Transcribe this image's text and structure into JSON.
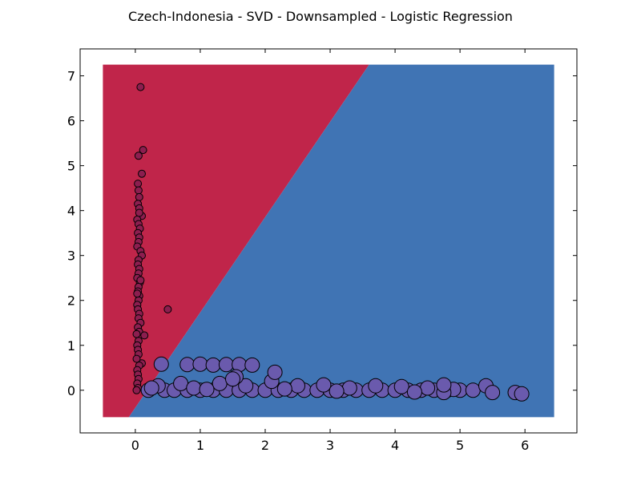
{
  "chart_data": {
    "type": "scatter",
    "title": "Czech-Indonesia - SVD - Downsampled - Logistic Regression",
    "xlabel": "",
    "ylabel": "",
    "xlim": [
      -0.85,
      6.8
    ],
    "ylim": [
      -0.95,
      7.6
    ],
    "xticks": [
      0,
      1,
      2,
      3,
      4,
      5,
      6
    ],
    "yticks": [
      0,
      1,
      2,
      3,
      4,
      5,
      6,
      7
    ],
    "grid": false,
    "legend": "none",
    "mesh_extent": {
      "x": [
        -0.5,
        6.45
      ],
      "y": [
        -0.6,
        7.25
      ]
    },
    "decision_boundary": [
      [
        -0.1,
        -0.6
      ],
      [
        3.6,
        7.25
      ]
    ],
    "colors": {
      "region_class_0": "#c0254a",
      "region_class_1": "#4074b4",
      "points_class_0": "#8c1e4f",
      "points_class_1": "#6a5aad",
      "point_edge": "#000000"
    },
    "series": [
      {
        "class": 0,
        "points": [
          [
            0.08,
            6.75
          ],
          [
            0.12,
            5.35
          ],
          [
            0.05,
            5.22
          ],
          [
            0.1,
            4.82
          ],
          [
            0.04,
            4.6
          ],
          [
            0.05,
            4.45
          ],
          [
            0.06,
            4.3
          ],
          [
            0.04,
            4.15
          ],
          [
            0.06,
            4.05
          ],
          [
            0.1,
            3.88
          ],
          [
            0.03,
            3.8
          ],
          [
            0.05,
            3.7
          ],
          [
            0.07,
            3.6
          ],
          [
            0.04,
            3.5
          ],
          [
            0.06,
            3.4
          ],
          [
            0.05,
            3.3
          ],
          [
            0.03,
            3.2
          ],
          [
            0.08,
            3.1
          ],
          [
            0.1,
            3.0
          ],
          [
            0.05,
            2.9
          ],
          [
            0.04,
            2.8
          ],
          [
            0.06,
            2.7
          ],
          [
            0.05,
            2.6
          ],
          [
            0.03,
            2.5
          ],
          [
            0.07,
            2.4
          ],
          [
            0.05,
            2.3
          ],
          [
            0.04,
            2.2
          ],
          [
            0.06,
            2.1
          ],
          [
            0.05,
            2.0
          ],
          [
            0.03,
            1.9
          ],
          [
            0.04,
            1.8
          ],
          [
            0.06,
            1.7
          ],
          [
            0.05,
            1.6
          ],
          [
            0.08,
            1.5
          ],
          [
            0.04,
            1.4
          ],
          [
            0.06,
            1.3
          ],
          [
            0.14,
            1.22
          ],
          [
            0.05,
            1.1
          ],
          [
            0.03,
            1.0
          ],
          [
            0.04,
            0.9
          ],
          [
            0.05,
            0.8
          ],
          [
            0.1,
            0.6
          ],
          [
            0.06,
            0.55
          ],
          [
            0.03,
            0.45
          ],
          [
            0.04,
            0.35
          ],
          [
            0.05,
            0.25
          ],
          [
            0.03,
            0.15
          ],
          [
            0.04,
            0.05
          ],
          [
            0.02,
            0.0
          ],
          [
            0.5,
            1.8
          ],
          [
            0.06,
            3.95
          ],
          [
            0.08,
            2.45
          ],
          [
            0.03,
            2.15
          ],
          [
            0.02,
            1.25
          ],
          [
            0.02,
            0.7
          ]
        ]
      },
      {
        "class": 1,
        "points": [
          [
            0.2,
            0.0
          ],
          [
            0.45,
            0.0
          ],
          [
            0.6,
            0.0
          ],
          [
            0.8,
            0.0
          ],
          [
            1.0,
            0.0
          ],
          [
            1.2,
            0.0
          ],
          [
            1.4,
            0.0
          ],
          [
            1.6,
            0.0
          ],
          [
            1.8,
            0.0
          ],
          [
            2.0,
            0.0
          ],
          [
            2.2,
            0.0
          ],
          [
            2.4,
            0.0
          ],
          [
            2.6,
            0.0
          ],
          [
            2.8,
            0.0
          ],
          [
            3.0,
            0.0
          ],
          [
            3.2,
            0.0
          ],
          [
            3.4,
            0.0
          ],
          [
            3.6,
            0.0
          ],
          [
            3.8,
            0.0
          ],
          [
            4.0,
            0.0
          ],
          [
            4.2,
            0.0
          ],
          [
            4.4,
            0.0
          ],
          [
            4.6,
            0.0
          ],
          [
            4.8,
            0.0
          ],
          [
            5.0,
            0.0
          ],
          [
            5.2,
            0.0
          ],
          [
            0.35,
            0.1
          ],
          [
            0.7,
            0.15
          ],
          [
            0.9,
            0.05
          ],
          [
            1.3,
            0.15
          ],
          [
            1.7,
            0.1
          ],
          [
            2.1,
            0.2
          ],
          [
            2.5,
            0.1
          ],
          [
            2.9,
            0.12
          ],
          [
            3.3,
            0.05
          ],
          [
            3.7,
            0.1
          ],
          [
            4.1,
            0.08
          ],
          [
            4.5,
            0.05
          ],
          [
            4.9,
            0.02
          ],
          [
            0.4,
            0.58
          ],
          [
            0.8,
            0.57
          ],
          [
            1.0,
            0.58
          ],
          [
            1.2,
            0.56
          ],
          [
            1.4,
            0.57
          ],
          [
            1.6,
            0.57
          ],
          [
            1.8,
            0.56
          ],
          [
            2.15,
            0.4
          ],
          [
            1.55,
            0.3
          ],
          [
            0.25,
            0.05
          ],
          [
            5.4,
            0.1
          ],
          [
            5.5,
            -0.05
          ],
          [
            5.85,
            -0.05
          ],
          [
            5.95,
            -0.08
          ],
          [
            4.75,
            -0.05
          ],
          [
            4.75,
            0.12
          ],
          [
            1.1,
            0.02
          ],
          [
            1.5,
            0.25
          ],
          [
            2.3,
            0.03
          ],
          [
            3.1,
            -0.02
          ],
          [
            4.3,
            -0.04
          ]
        ]
      }
    ]
  }
}
